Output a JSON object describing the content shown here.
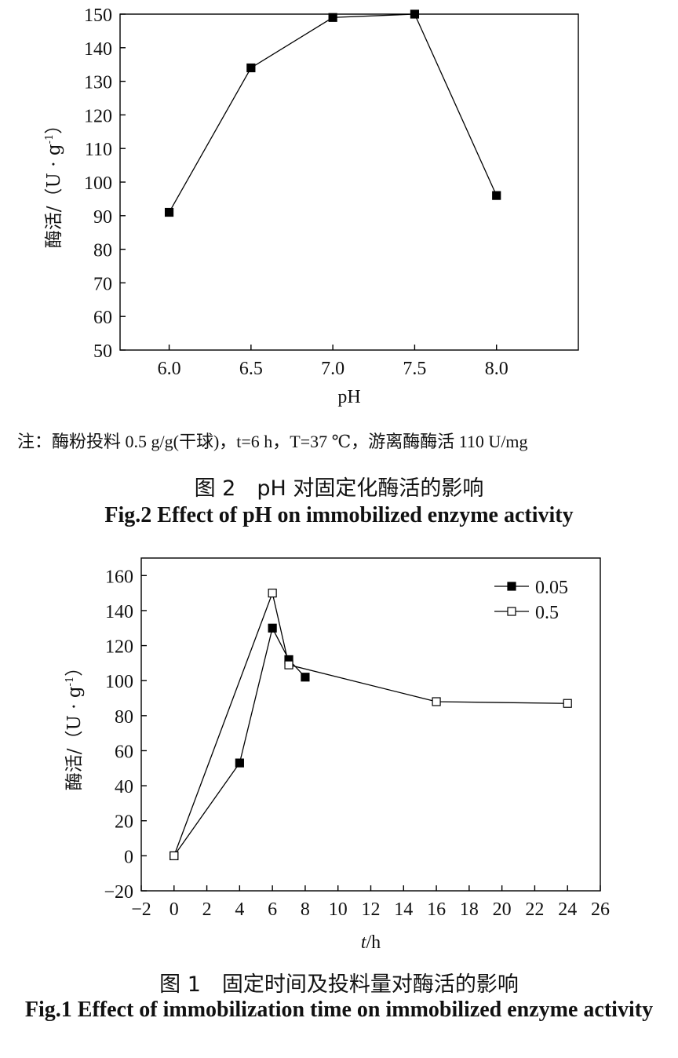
{
  "captions": {
    "fig2_note": "注：酶粉投料 0.5 g/g(干球)，t=6 h，T=37 ℃，游离酶酶活 110 U/mg",
    "fig2_cn": "图 2　pH 对固定化酶活的影响",
    "fig2_en": "Fig.2 Effect of pH on immobilized enzyme activity",
    "fig1_cn": "图 1　固定时间及投料量对酶活的影响",
    "fig1_en": "Fig.1 Effect of immobilization time on immobilized enzyme activity"
  },
  "chart_data": [
    {
      "type": "line",
      "xlabel": "pH",
      "ylabel": "酶活/（U · g-1）",
      "xlim": [
        5.7,
        8.5
      ],
      "ylim": [
        50,
        150
      ],
      "xticks": [
        "6.0",
        "6.5",
        "7.0",
        "7.5",
        "8.0"
      ],
      "yticks": [
        "50",
        "60",
        "70",
        "80",
        "90",
        "100",
        "110",
        "120",
        "130",
        "140",
        "150"
      ],
      "series": [
        {
          "marker": "filled-square",
          "color": "#000000",
          "x": [
            6.0,
            6.5,
            7.0,
            7.5,
            8.0
          ],
          "y": [
            91,
            134,
            149,
            150,
            96
          ]
        }
      ]
    },
    {
      "type": "line",
      "xlabel": "t/h",
      "ylabel": "酶活/（U · g-1）",
      "xlim": [
        -2,
        26
      ],
      "ylim": [
        -20,
        170
      ],
      "xticks": [
        "−2",
        "0",
        "2",
        "4",
        "6",
        "8",
        "10",
        "12",
        "14",
        "16",
        "18",
        "20",
        "22",
        "24",
        "26"
      ],
      "yticks": [
        "−20",
        "0",
        "20",
        "40",
        "60",
        "80",
        "100",
        "120",
        "140",
        "160"
      ],
      "legend": "top-right",
      "series": [
        {
          "name": "0.05",
          "marker": "filled-square",
          "color": "#000000",
          "x": [
            0,
            4,
            6,
            7,
            8
          ],
          "y": [
            0,
            53,
            130,
            112,
            102
          ]
        },
        {
          "name": "0.5",
          "marker": "open-square",
          "color": "#000000",
          "x": [
            0,
            6,
            7,
            16,
            24
          ],
          "y": [
            0,
            150,
            109,
            88,
            87
          ]
        }
      ]
    }
  ]
}
